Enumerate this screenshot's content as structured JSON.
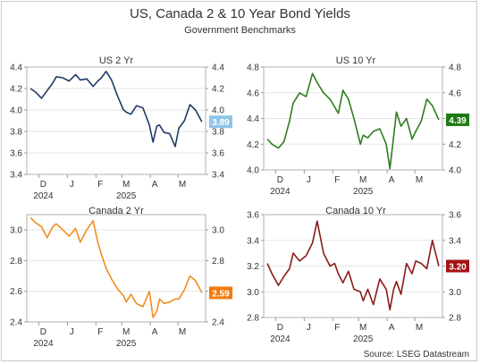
{
  "title": "US, Canada 2 & 10 Year Bond Yields",
  "subtitle": "Government Benchmarks",
  "source": "Source: LSEG Datastream",
  "chart_data": [
    {
      "type": "line",
      "title": "US 2 Yr",
      "color": "#1f3b66",
      "ylim": [
        3.4,
        4.4
      ],
      "yticks": [
        "3.4",
        "3.6",
        "3.8",
        "4.0",
        "4.2",
        "4.4"
      ],
      "xticks": [
        "D",
        "J",
        "F",
        "M",
        "A",
        "M"
      ],
      "xlabels2": [
        "2024",
        "2025"
      ],
      "last_value": "3.89",
      "badge_color": "#8fc4ea",
      "x": [
        "2024-11-22",
        "2024-11-27",
        "2024-12-04",
        "2024-12-10",
        "2024-12-16",
        "2024-12-20",
        "2024-12-27",
        "2025-01-03",
        "2025-01-10",
        "2025-01-15",
        "2025-01-22",
        "2025-01-29",
        "2025-02-03",
        "2025-02-07",
        "2025-02-12",
        "2025-02-18",
        "2025-02-24",
        "2025-03-03",
        "2025-03-06",
        "2025-03-11",
        "2025-03-17",
        "2025-03-24",
        "2025-03-31",
        "2025-04-04",
        "2025-04-08",
        "2025-04-11",
        "2025-04-16",
        "2025-04-22",
        "2025-04-28",
        "2025-05-02",
        "2025-05-08",
        "2025-05-14",
        "2025-05-20",
        "2025-05-27"
      ],
      "y": [
        4.2,
        4.17,
        4.11,
        4.18,
        4.25,
        4.31,
        4.3,
        4.27,
        4.33,
        4.28,
        4.29,
        4.22,
        4.27,
        4.3,
        4.36,
        4.28,
        4.14,
        4.0,
        3.98,
        3.96,
        4.04,
        4.02,
        3.86,
        3.7,
        3.85,
        3.86,
        3.79,
        3.78,
        3.66,
        3.83,
        3.9,
        4.05,
        4.0,
        3.89
      ]
    },
    {
      "type": "line",
      "title": "US 10 Yr",
      "color": "#2e7d1e",
      "ylim": [
        4.0,
        4.8
      ],
      "yticks": [
        "4.0",
        "4.2",
        "4.4",
        "4.6",
        "4.8"
      ],
      "xticks": [
        "D",
        "J",
        "F",
        "M",
        "A",
        "M"
      ],
      "xlabels2": [
        "2024",
        "2025"
      ],
      "last_value": "4.39",
      "badge_color": "#1f7a14",
      "x": [
        "2024-11-22",
        "2024-11-27",
        "2024-12-04",
        "2024-12-10",
        "2024-12-16",
        "2024-12-20",
        "2024-12-27",
        "2025-01-03",
        "2025-01-10",
        "2025-01-15",
        "2025-01-22",
        "2025-01-29",
        "2025-02-03",
        "2025-02-07",
        "2025-02-12",
        "2025-02-18",
        "2025-02-24",
        "2025-03-03",
        "2025-03-06",
        "2025-03-11",
        "2025-03-17",
        "2025-03-24",
        "2025-03-31",
        "2025-04-04",
        "2025-04-08",
        "2025-04-11",
        "2025-04-16",
        "2025-04-22",
        "2025-04-28",
        "2025-05-02",
        "2025-05-08",
        "2025-05-14",
        "2025-05-20",
        "2025-05-27"
      ],
      "y": [
        4.24,
        4.2,
        4.17,
        4.22,
        4.38,
        4.52,
        4.6,
        4.57,
        4.75,
        4.68,
        4.6,
        4.55,
        4.49,
        4.44,
        4.62,
        4.55,
        4.4,
        4.2,
        4.27,
        4.25,
        4.3,
        4.32,
        4.2,
        4.01,
        4.26,
        4.45,
        4.34,
        4.4,
        4.24,
        4.3,
        4.38,
        4.55,
        4.5,
        4.39
      ]
    },
    {
      "type": "line",
      "title": "Canada 2 Yr",
      "color": "#f28c1e",
      "ylim": [
        2.4,
        3.1
      ],
      "yticks": [
        "2.4",
        "2.6",
        "2.8",
        "3.0"
      ],
      "xticks": [
        "D",
        "J",
        "F",
        "M",
        "A",
        "M"
      ],
      "xlabels2": [
        "2024",
        "2025"
      ],
      "last_value": "2.59",
      "badge_color": "#f07d10",
      "x": [
        "2024-11-22",
        "2024-11-27",
        "2024-12-04",
        "2024-12-10",
        "2024-12-16",
        "2024-12-20",
        "2024-12-27",
        "2025-01-03",
        "2025-01-10",
        "2025-01-15",
        "2025-01-22",
        "2025-01-29",
        "2025-02-03",
        "2025-02-07",
        "2025-02-12",
        "2025-02-18",
        "2025-02-24",
        "2025-03-03",
        "2025-03-06",
        "2025-03-11",
        "2025-03-17",
        "2025-03-24",
        "2025-03-31",
        "2025-04-04",
        "2025-04-08",
        "2025-04-11",
        "2025-04-16",
        "2025-04-22",
        "2025-04-28",
        "2025-05-02",
        "2025-05-08",
        "2025-05-14",
        "2025-05-20",
        "2025-05-27"
      ],
      "y": [
        3.08,
        3.05,
        3.02,
        2.95,
        3.02,
        3.04,
        3.0,
        2.96,
        3.01,
        2.92,
        3.0,
        3.06,
        2.92,
        2.84,
        2.75,
        2.68,
        2.62,
        2.57,
        2.53,
        2.58,
        2.52,
        2.5,
        2.6,
        2.43,
        2.47,
        2.55,
        2.52,
        2.53,
        2.55,
        2.55,
        2.61,
        2.7,
        2.67,
        2.59
      ]
    },
    {
      "type": "line",
      "title": "Canada 10 Yr",
      "color": "#8b1a1a",
      "ylim": [
        2.8,
        3.6
      ],
      "yticks": [
        "2.8",
        "3.0",
        "3.2",
        "3.4",
        "3.6"
      ],
      "xticks": [
        "D",
        "J",
        "F",
        "M",
        "A",
        "M"
      ],
      "xlabels2": [
        "2024",
        "2025"
      ],
      "last_value": "3.20",
      "badge_color": "#a31515",
      "x": [
        "2024-11-22",
        "2024-11-27",
        "2024-12-04",
        "2024-12-10",
        "2024-12-16",
        "2024-12-20",
        "2024-12-27",
        "2025-01-03",
        "2025-01-10",
        "2025-01-15",
        "2025-01-22",
        "2025-01-29",
        "2025-02-03",
        "2025-02-07",
        "2025-02-12",
        "2025-02-18",
        "2025-02-24",
        "2025-03-03",
        "2025-03-06",
        "2025-03-11",
        "2025-03-17",
        "2025-03-24",
        "2025-03-31",
        "2025-04-04",
        "2025-04-08",
        "2025-04-11",
        "2025-04-16",
        "2025-04-22",
        "2025-04-28",
        "2025-05-02",
        "2025-05-08",
        "2025-05-14",
        "2025-05-20",
        "2025-05-27"
      ],
      "y": [
        3.22,
        3.14,
        3.05,
        3.12,
        3.18,
        3.3,
        3.24,
        3.28,
        3.38,
        3.55,
        3.3,
        3.2,
        3.22,
        3.14,
        3.07,
        3.16,
        3.02,
        3.0,
        2.93,
        3.02,
        2.9,
        3.1,
        3.02,
        2.86,
        3.02,
        3.08,
        2.98,
        3.22,
        3.14,
        3.24,
        3.22,
        3.18,
        3.4,
        3.2
      ]
    }
  ]
}
